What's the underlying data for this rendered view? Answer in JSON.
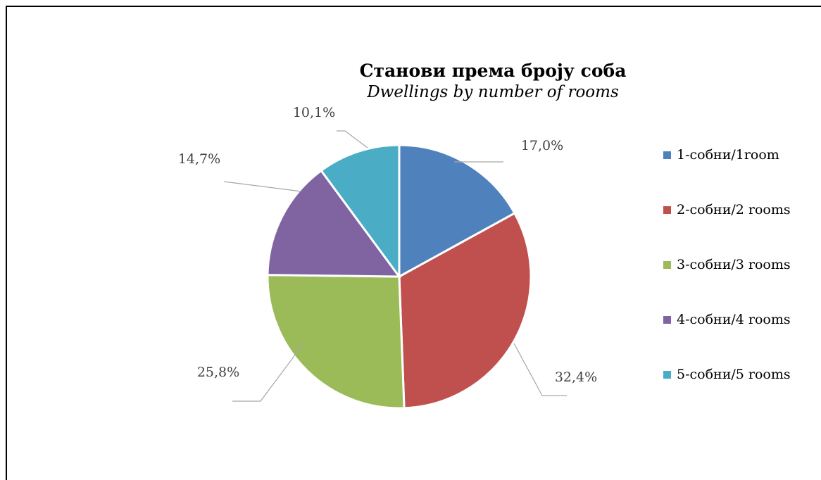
{
  "chart_data": {
    "type": "pie",
    "title": "Станови према броју соба",
    "subtitle": "Dwellings by number of rooms",
    "categories": [
      "1-собни/1room",
      "2-собни/2 rooms",
      "3-собни/3 rooms",
      "4-собни/4 rooms",
      "5-собни/5 rooms"
    ],
    "values": [
      17.0,
      32.4,
      25.8,
      14.7,
      10.1
    ],
    "labels": [
      "17,0%",
      "32,4%",
      "25,8%",
      "14,7%",
      "10,1%"
    ],
    "colors": [
      "#4F81BD",
      "#C0504D",
      "#9BBB59",
      "#8064A2",
      "#4BACC6"
    ],
    "legend_position": "right"
  }
}
